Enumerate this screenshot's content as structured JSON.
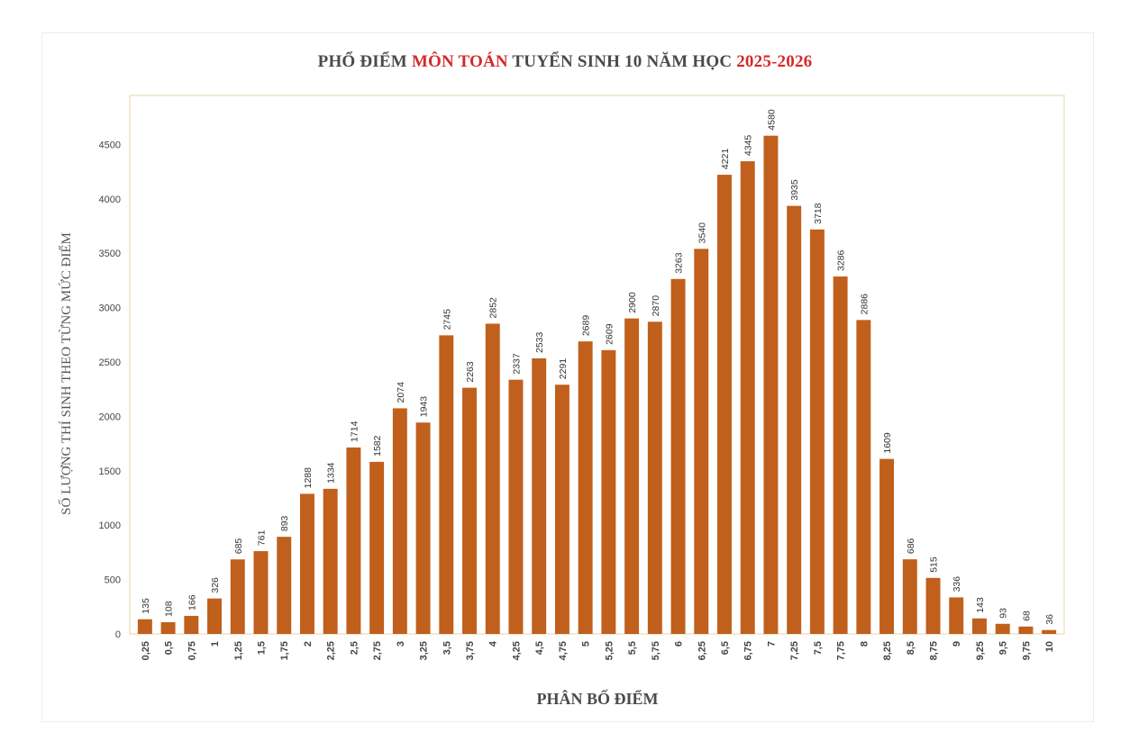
{
  "chart_data": {
    "type": "bar",
    "title_parts": [
      {
        "text": "PHỔ ĐIỂM ",
        "color": "#4a4a4a"
      },
      {
        "text": "MÔN TOÁN",
        "color": "#d42a2a"
      },
      {
        "text": " TUYỂN SINH 10 NĂM HỌC ",
        "color": "#4a4a4a"
      },
      {
        "text": "2025-2026",
        "color": "#d42a2a"
      }
    ],
    "xlabel": "PHÂN BỐ ĐIỂM",
    "ylabel": "SỐ LƯỢNG THÍ SINH THEO TỪNG MỨC ĐIỂM",
    "categories": [
      "0,25",
      "0,5",
      "0,75",
      "1",
      "1,25",
      "1,5",
      "1,75",
      "2",
      "2,25",
      "2,5",
      "2,75",
      "3",
      "3,25",
      "3,5",
      "3,75",
      "4",
      "4,25",
      "4,5",
      "4,75",
      "5",
      "5,25",
      "5,5",
      "5,75",
      "6",
      "6,25",
      "6,5",
      "6,75",
      "7",
      "7,25",
      "7,5",
      "7,75",
      "8",
      "8,25",
      "8,5",
      "8,75",
      "9",
      "9,25",
      "9,5",
      "9,75",
      "10"
    ],
    "values": [
      135,
      108,
      166,
      326,
      685,
      761,
      893,
      1288,
      1334,
      1714,
      1582,
      2074,
      1943,
      2745,
      2263,
      2852,
      2337,
      2533,
      2291,
      2689,
      2609,
      2900,
      2870,
      3263,
      3540,
      4221,
      4345,
      4580,
      3935,
      3718,
      3286,
      2886,
      1609,
      686,
      515,
      336,
      143,
      93,
      68,
      36
    ],
    "yticks": [
      0,
      500,
      1000,
      1500,
      2000,
      2500,
      3000,
      3500,
      4000,
      4500
    ],
    "ylim": [
      0,
      4950
    ],
    "bar_color": "#c0601c",
    "grid": false
  }
}
